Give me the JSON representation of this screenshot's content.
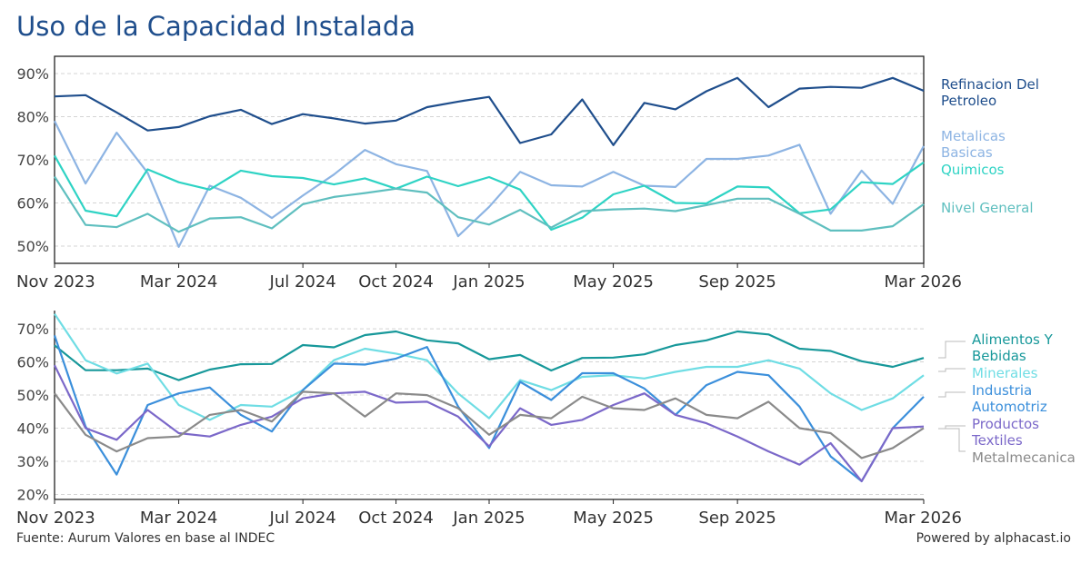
{
  "title": "Uso de la Capacidad Instalada",
  "source": "Fuente: Aurum Valores en base al INDEC",
  "powered": "Powered by alphacast.io",
  "chart_data": [
    {
      "type": "line",
      "ylim": [
        46,
        94
      ],
      "yticks": [
        "50%",
        "60%",
        "70%",
        "80%",
        "90%"
      ],
      "ytick_values": [
        50,
        60,
        70,
        80,
        90
      ],
      "grid": true,
      "legend_position": "right",
      "x": [
        "2023-11",
        "2023-12",
        "2024-01",
        "2024-02",
        "2024-03",
        "2024-04",
        "2024-05",
        "2024-06",
        "2024-07",
        "2024-08",
        "2024-09",
        "2024-10",
        "2024-11",
        "2024-12",
        "2025-01",
        "2025-02",
        "2025-03",
        "2025-04",
        "2025-05",
        "2025-06",
        "2025-07",
        "2025-08",
        "2025-09",
        "2025-10",
        "2025-11",
        "2025-12",
        "2026-01",
        "2026-02",
        "2026-03"
      ],
      "xtick_labels": [
        "Nov 2023",
        "Mar 2024",
        "Jul 2024",
        "Oct 2024",
        "Jan 2025",
        "May 2025",
        "Sep 2025",
        "Mar 2026"
      ],
      "xtick_index": [
        0,
        4,
        8,
        11,
        14,
        18,
        22,
        28
      ],
      "series": [
        {
          "name": "Refinacion Del Petroleo",
          "color": "#1f4e8c",
          "values": [
            84.7,
            85.0,
            81.0,
            76.8,
            77.6,
            80.1,
            81.6,
            78.3,
            80.6,
            79.6,
            78.4,
            79.1,
            82.2,
            83.5,
            84.6,
            73.9,
            75.9,
            84.0,
            73.4,
            83.2,
            81.7,
            85.9,
            89.0,
            82.2,
            86.5,
            86.9,
            86.7,
            89.0,
            86.0
          ]
        },
        {
          "name": "Metalicas Basicas",
          "color": "#8db4e3",
          "values": [
            79.0,
            64.5,
            76.3,
            67.0,
            49.8,
            64.0,
            61.2,
            56.5,
            61.7,
            66.6,
            72.3,
            69.0,
            67.4,
            52.3,
            59.1,
            67.2,
            64.1,
            63.8,
            67.2,
            64.0,
            63.7,
            70.2,
            70.2,
            71.0,
            73.5,
            57.5,
            67.5,
            59.8,
            73.2
          ]
        },
        {
          "name": "Quimicos",
          "color": "#2ed3c4",
          "values": [
            71.0,
            58.2,
            56.9,
            67.8,
            64.8,
            63.1,
            67.5,
            66.2,
            65.8,
            64.3,
            65.7,
            63.3,
            66.1,
            63.9,
            66.0,
            63.1,
            53.8,
            56.6,
            62.0,
            64.0,
            60.0,
            59.9,
            63.8,
            63.6,
            57.6,
            58.5,
            64.8,
            64.4,
            69.4
          ]
        },
        {
          "name": "Nivel General",
          "color": "#5fbfbf",
          "values": [
            66.1,
            54.9,
            54.4,
            57.5,
            53.3,
            56.4,
            56.7,
            54.1,
            59.7,
            61.4,
            62.3,
            63.3,
            62.4,
            56.7,
            55.0,
            58.4,
            54.3,
            58.1,
            58.5,
            58.7,
            58.1,
            59.5,
            61.0,
            61.0,
            57.5,
            53.6,
            53.6,
            54.6,
            59.7
          ]
        }
      ]
    },
    {
      "type": "line",
      "ylim": [
        18.5,
        75.5
      ],
      "yticks": [
        "20%",
        "30%",
        "40%",
        "50%",
        "60%",
        "70%"
      ],
      "ytick_values": [
        20,
        30,
        40,
        50,
        60,
        70
      ],
      "grid": true,
      "legend_position": "right",
      "x": [
        "2023-11",
        "2023-12",
        "2024-01",
        "2024-02",
        "2024-03",
        "2024-04",
        "2024-05",
        "2024-06",
        "2024-07",
        "2024-08",
        "2024-09",
        "2024-10",
        "2024-11",
        "2024-12",
        "2025-01",
        "2025-02",
        "2025-03",
        "2025-04",
        "2025-05",
        "2025-06",
        "2025-07",
        "2025-08",
        "2025-09",
        "2025-10",
        "2025-11",
        "2025-12",
        "2026-01",
        "2026-02",
        "2026-03"
      ],
      "xtick_labels": [
        "Nov 2023",
        "Mar 2024",
        "Jul 2024",
        "Oct 2024",
        "Jan 2025",
        "May 2025",
        "Sep 2025",
        "Mar 2026"
      ],
      "xtick_index": [
        0,
        4,
        8,
        11,
        14,
        18,
        22,
        28
      ],
      "series": [
        {
          "name": "Alimentos Y Bebidas",
          "color": "#17989a",
          "values": [
            65.0,
            57.5,
            57.5,
            58.0,
            54.5,
            57.7,
            59.3,
            59.4,
            65.1,
            64.4,
            68.1,
            69.2,
            66.5,
            65.6,
            60.8,
            62.1,
            57.4,
            61.2,
            61.3,
            62.3,
            65.1,
            66.5,
            69.2,
            68.3,
            64.0,
            63.3,
            60.2,
            58.5,
            61.2
          ]
        },
        {
          "name": "Minerales",
          "color": "#6fdde4",
          "values": [
            74.5,
            60.5,
            56.5,
            59.5,
            47.0,
            42.5,
            47.0,
            46.5,
            51.5,
            60.5,
            64.0,
            62.5,
            60.5,
            50.5,
            43.0,
            54.5,
            51.5,
            55.5,
            56.0,
            55.0,
            57.0,
            58.5,
            58.5,
            60.5,
            58.0,
            50.5,
            45.5,
            49.0,
            56.0
          ]
        },
        {
          "name": "Industria Automotriz",
          "color": "#3b8fdb",
          "values": [
            68.0,
            40.5,
            26.0,
            47.0,
            50.5,
            52.3,
            44.0,
            39.0,
            51.5,
            59.5,
            59.2,
            61.0,
            64.5,
            46.5,
            34.0,
            54.0,
            48.5,
            56.6,
            56.6,
            52.0,
            44.0,
            53.0,
            57.0,
            56.0,
            46.5,
            31.5,
            24.0,
            40.0,
            49.5
          ]
        },
        {
          "name": "Productos Textiles",
          "color": "#7b68c9",
          "values": [
            59.0,
            40.0,
            36.5,
            45.5,
            38.5,
            37.5,
            41.0,
            43.5,
            49.0,
            50.5,
            51.0,
            47.7,
            48.0,
            43.5,
            34.5,
            46.0,
            41.0,
            42.5,
            47.0,
            50.5,
            44.0,
            41.5,
            37.5,
            33.0,
            29.0,
            35.5,
            24.0,
            40.0,
            40.5
          ]
        },
        {
          "name": "Metalmecanica",
          "color": "#8a8a8a",
          "values": [
            50.5,
            38.0,
            33.0,
            37.0,
            37.5,
            44.0,
            45.5,
            42.0,
            51.0,
            50.5,
            43.5,
            50.5,
            50.0,
            46.0,
            38.0,
            44.0,
            43.0,
            49.5,
            46.0,
            45.5,
            49.0,
            44.0,
            43.0,
            48.0,
            40.0,
            38.5,
            31.0,
            34.0,
            40.0
          ]
        }
      ]
    }
  ]
}
